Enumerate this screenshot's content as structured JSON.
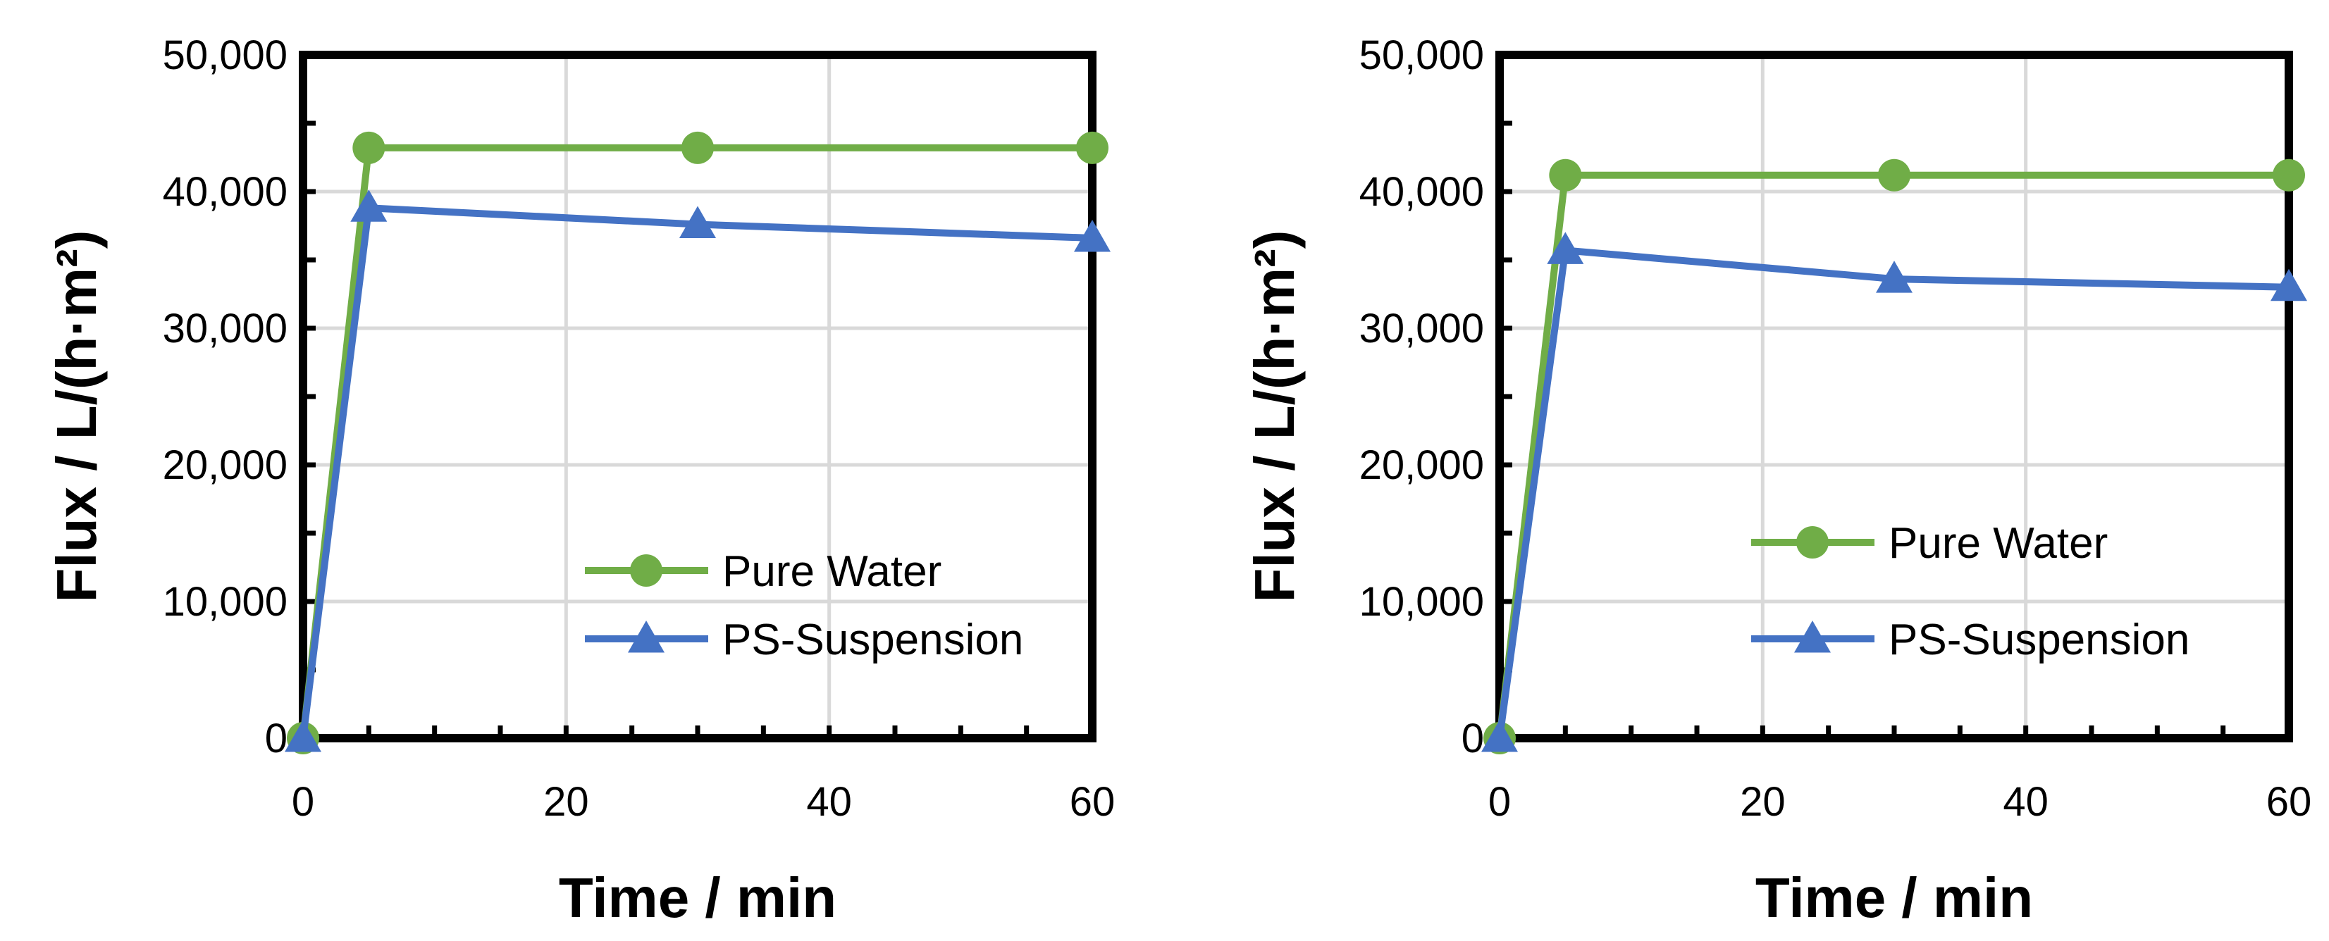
{
  "chart_data": [
    {
      "type": "line",
      "title": "",
      "xlabel": "Time / min",
      "ylabel": "Flux / L/(h·m²)",
      "xlim": [
        0,
        60
      ],
      "ylim": [
        0,
        50000
      ],
      "x_ticks": [
        0,
        20,
        40,
        60
      ],
      "x_tick_labels": [
        "0",
        "20",
        "40",
        "60"
      ],
      "y_ticks": [
        0,
        10000,
        20000,
        30000,
        40000,
        50000
      ],
      "y_tick_labels": [
        "0",
        "10,000",
        "20,000",
        "30,000",
        "40,000",
        "50,000"
      ],
      "grid": true,
      "legend_position": "lower-right",
      "series": [
        {
          "name": "Pure Water",
          "marker": "circle",
          "color": "#70ad47",
          "x": [
            0,
            5,
            30,
            60
          ],
          "values": [
            0,
            43200,
            43200,
            43200
          ]
        },
        {
          "name": "PS-Suspension",
          "marker": "triangle",
          "color": "#4472c4",
          "x": [
            0,
            5,
            30,
            60
          ],
          "values": [
            0,
            38800,
            37600,
            36600
          ]
        }
      ]
    },
    {
      "type": "line",
      "title": "",
      "xlabel": "Time / min",
      "ylabel": "Flux / L/(h·m²)",
      "xlim": [
        0,
        60
      ],
      "ylim": [
        0,
        50000
      ],
      "x_ticks": [
        0,
        20,
        40,
        60
      ],
      "x_tick_labels": [
        "0",
        "20",
        "40",
        "60"
      ],
      "y_ticks": [
        0,
        10000,
        20000,
        30000,
        40000,
        50000
      ],
      "y_tick_labels": [
        "0",
        "10,000",
        "20,000",
        "30,000",
        "40,000",
        "50,000"
      ],
      "grid": true,
      "legend_position": "center-right",
      "series": [
        {
          "name": "Pure Water",
          "marker": "circle",
          "color": "#70ad47",
          "x": [
            0,
            5,
            30,
            60
          ],
          "values": [
            0,
            41200,
            41200,
            41200
          ]
        },
        {
          "name": "PS-Suspension",
          "marker": "triangle",
          "color": "#4472c4",
          "x": [
            0,
            5,
            30,
            60
          ],
          "values": [
            0,
            35700,
            33600,
            33000
          ]
        }
      ]
    }
  ]
}
